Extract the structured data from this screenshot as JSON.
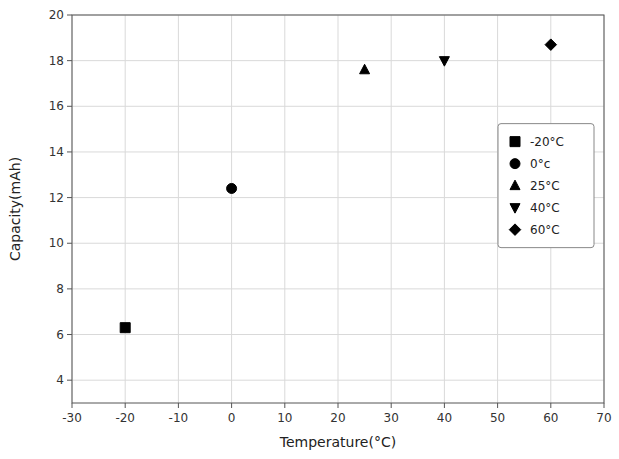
{
  "chart_data": {
    "type": "scatter",
    "title": "",
    "x_label": "Temperature(°C)",
    "y_label": "Capacity(mAh)",
    "xlim": [
      -30,
      70
    ],
    "ylim": [
      3,
      20
    ],
    "xticks": [
      -30,
      -20,
      -10,
      0,
      10,
      20,
      30,
      40,
      50,
      60,
      70
    ],
    "yticks": [
      4,
      6,
      8,
      10,
      12,
      14,
      16,
      18,
      20
    ],
    "grid": true,
    "legend": "upper right",
    "series": [
      {
        "name": "-20°C",
        "color": "#000000",
        "marker": "square",
        "x": [
          -20
        ],
        "values": [
          6.3
        ]
      },
      {
        "name": "0°c",
        "color": "#000000",
        "marker": "circle",
        "x": [
          0
        ],
        "values": [
          12.4
        ]
      },
      {
        "name": "25°C",
        "color": "#000000",
        "marker": "triangle-up",
        "x": [
          25
        ],
        "values": [
          17.6
        ]
      },
      {
        "name": "40°C",
        "color": "#000000",
        "marker": "triangle-down",
        "x": [
          40
        ],
        "values": [
          18.0
        ]
      },
      {
        "name": "60°C",
        "color": "#000000",
        "marker": "diamond",
        "x": [
          60
        ],
        "values": [
          18.7
        ]
      }
    ]
  }
}
